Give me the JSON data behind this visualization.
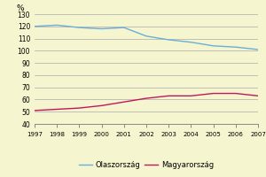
{
  "years": [
    1997,
    1998,
    1999,
    2000,
    2001,
    2002,
    2003,
    2004,
    2005,
    2006,
    2007
  ],
  "olaszorszag": [
    120,
    121,
    119,
    118,
    119,
    112,
    109,
    107,
    104,
    103,
    101
  ],
  "magyarorszag": [
    51,
    52,
    53,
    55,
    58,
    61,
    63,
    63,
    65,
    65,
    63
  ],
  "line_color_italy": "#6baed6",
  "line_color_hungary": "#c2185b",
  "bg_color": "#f5f5d0",
  "grid_color": "#aaaaaa",
  "ylim": [
    40,
    130
  ],
  "yticks": [
    40,
    50,
    60,
    70,
    80,
    90,
    100,
    110,
    120,
    130
  ],
  "pct_label": "%",
  "legend_italy": "Olaszország",
  "legend_hungary": "Magyarország"
}
